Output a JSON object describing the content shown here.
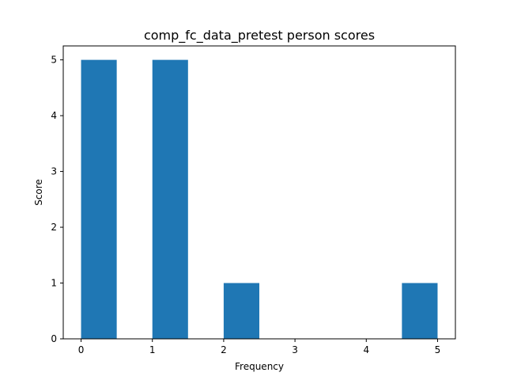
{
  "chart_data": {
    "type": "bar",
    "title": "comp_fc_data_pretest person scores",
    "xlabel": "Frequency",
    "ylabel": "Score",
    "xlim": [
      -0.25,
      5.25
    ],
    "ylim": [
      0,
      5.25
    ],
    "xticks": [
      0,
      1,
      2,
      3,
      4,
      5
    ],
    "yticks": [
      0,
      1,
      2,
      3,
      4,
      5
    ],
    "bars": [
      {
        "x0": 0.0,
        "x1": 0.5,
        "value": 5
      },
      {
        "x0": 0.5,
        "x1": 1.0,
        "value": 0
      },
      {
        "x0": 1.0,
        "x1": 1.5,
        "value": 5
      },
      {
        "x0": 1.5,
        "x1": 2.0,
        "value": 0
      },
      {
        "x0": 2.0,
        "x1": 2.5,
        "value": 1
      },
      {
        "x0": 2.5,
        "x1": 3.0,
        "value": 0
      },
      {
        "x0": 3.0,
        "x1": 3.5,
        "value": 0
      },
      {
        "x0": 3.5,
        "x1": 4.0,
        "value": 0
      },
      {
        "x0": 4.0,
        "x1": 4.5,
        "value": 0
      },
      {
        "x0": 4.5,
        "x1": 5.0,
        "value": 1
      }
    ],
    "bar_color": "#1f77b4",
    "grid": false,
    "legend": "none"
  }
}
